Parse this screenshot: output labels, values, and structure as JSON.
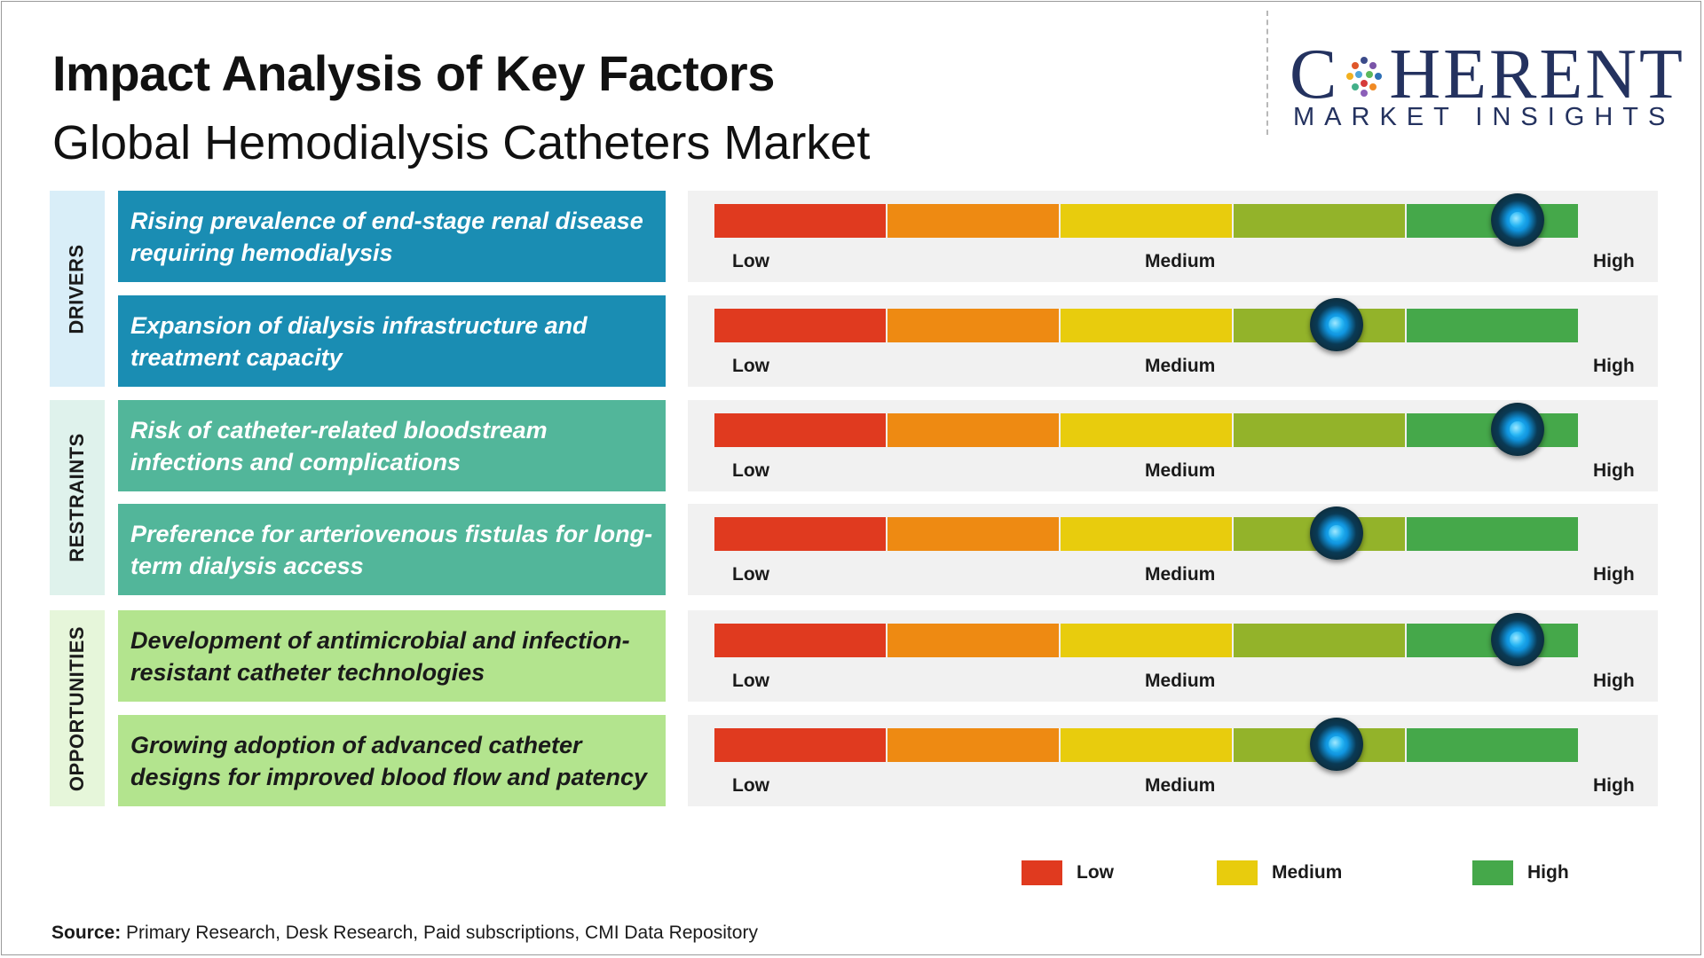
{
  "header": {
    "title": "Impact Analysis of Key Factors",
    "subtitle": "Global Hemodialysis Catheters Market"
  },
  "logo": {
    "main_left": "C",
    "main_right": "HERENT",
    "sub": "MARKET INSIGHTS",
    "color": "#24325f"
  },
  "scale_colors": [
    "#e03a1f",
    "#ee8a12",
    "#e8cc0d",
    "#93b32a",
    "#45a84a"
  ],
  "category_colors": {
    "drivers": {
      "factor_bg": "#1a8db3",
      "tab_bg": "#d9eef8",
      "text": "#ffffff"
    },
    "restraints": {
      "factor_bg": "#52b69a",
      "tab_bg": "#dff2ec",
      "text": "#ffffff"
    },
    "opportunities": {
      "factor_bg": "#b3e48e",
      "tab_bg": "#e6f6da",
      "text": "#1a1a1a"
    }
  },
  "chart_data": {
    "type": "gauge",
    "scale_labels": {
      "low": "Low",
      "medium": "Medium",
      "high": "High"
    },
    "categories": [
      {
        "name": "DRIVERS",
        "key": "drivers",
        "factors": [
          {
            "label": "Rising prevalence of end-stage renal disease requiring hemodialysis",
            "impact": 0.93
          },
          {
            "label": "Expansion of dialysis infrastructure and treatment capacity",
            "impact": 0.72
          }
        ]
      },
      {
        "name": "RESTRAINTS",
        "key": "restraints",
        "factors": [
          {
            "label": "Risk of catheter-related bloodstream infections and complications",
            "impact": 0.93
          },
          {
            "label": "Preference for arteriovenous fistulas for long-term dialysis access",
            "impact": 0.72
          }
        ]
      },
      {
        "name": "OPPORTUNITIES",
        "key": "opportunities",
        "factors": [
          {
            "label": "Development of antimicrobial and infection-resistant catheter technologies",
            "impact": 0.93
          },
          {
            "label": "Growing adoption of advanced catheter designs for improved blood flow and patency",
            "impact": 0.72
          }
        ]
      }
    ],
    "legend": [
      {
        "label": "Low",
        "color": "#e03a1f"
      },
      {
        "label": "Medium",
        "color": "#e8cc0d"
      },
      {
        "label": "High",
        "color": "#45a84a"
      }
    ]
  },
  "source": {
    "prefix": "Source:",
    "text": " Primary Research, Desk Research, Paid subscriptions, CMI Data Repository"
  }
}
